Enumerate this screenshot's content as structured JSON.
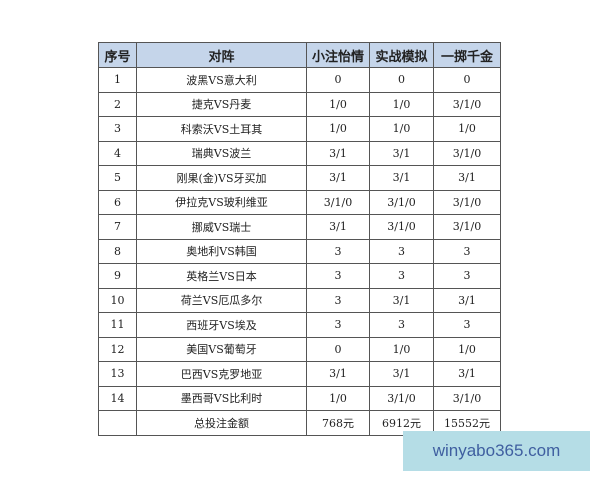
{
  "headers": [
    "序号",
    "对阵",
    "小注怡情",
    "实战模拟",
    "一掷千金"
  ],
  "rows": [
    [
      "1",
      "波黑VS意大利",
      "0",
      "0",
      "0"
    ],
    [
      "2",
      "捷克VS丹麦",
      "1/0",
      "1/0",
      "3/1/0"
    ],
    [
      "3",
      "科索沃VS土耳其",
      "1/0",
      "1/0",
      "1/0"
    ],
    [
      "4",
      "瑞典VS波兰",
      "3/1",
      "3/1",
      "3/1/0"
    ],
    [
      "5",
      "刚果(金)VS牙买加",
      "3/1",
      "3/1",
      "3/1"
    ],
    [
      "6",
      "伊拉克VS玻利维亚",
      "3/1/0",
      "3/1/0",
      "3/1/0"
    ],
    [
      "7",
      "挪威VS瑞士",
      "3/1",
      "3/1/0",
      "3/1/0"
    ],
    [
      "8",
      "奥地利VS韩国",
      "3",
      "3",
      "3"
    ],
    [
      "9",
      "英格兰VS日本",
      "3",
      "3",
      "3"
    ],
    [
      "10",
      "荷兰VS厄瓜多尔",
      "3",
      "3/1",
      "3/1"
    ],
    [
      "11",
      "西班牙VS埃及",
      "3",
      "3",
      "3"
    ],
    [
      "12",
      "美国VS葡萄牙",
      "0",
      "1/0",
      "1/0"
    ],
    [
      "13",
      "巴西VS克罗地亚",
      "3/1",
      "3/1",
      "3/1"
    ],
    [
      "14",
      "墨西哥VS比利时",
      "1/0",
      "3/1/0",
      "3/1/0"
    ],
    [
      "",
      "总投注金额",
      "768元",
      "6912元",
      "15552元"
    ]
  ],
  "watermark": "winyabo365.com"
}
